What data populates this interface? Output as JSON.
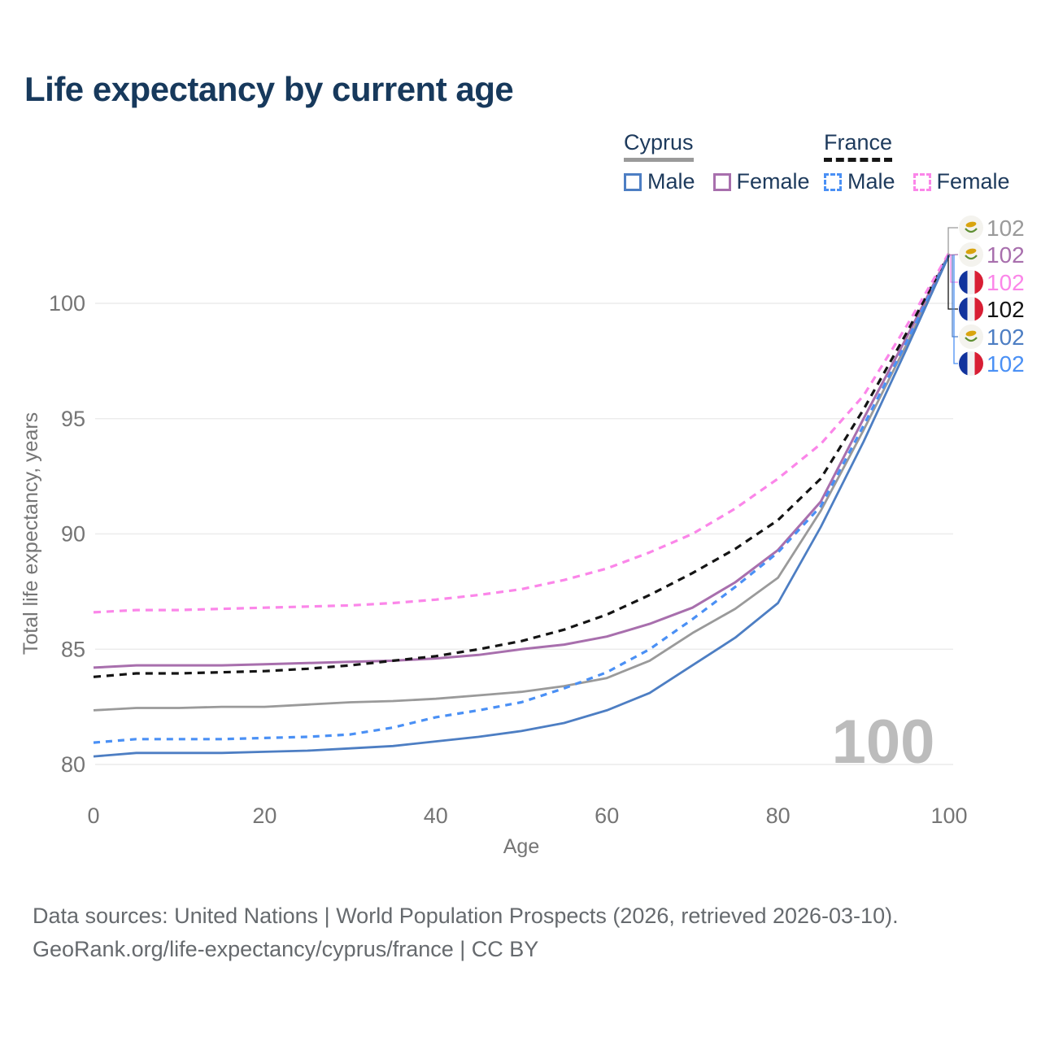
{
  "page": {
    "title": "Life expectancy by current age"
  },
  "legend": {
    "cyprus": {
      "title": "Cyprus",
      "male": "Male",
      "female": "Female"
    },
    "france": {
      "title": "France",
      "male": "Male",
      "female": "Female"
    }
  },
  "footer": {
    "line1": "Data sources: United Nations | World Population Prospects (2026, retrieved 2026-03-10).",
    "line2": "GeoRank.org/life-expectancy/cyprus/france | CC BY"
  },
  "chart_data": {
    "type": "line",
    "title": "Life expectancy by current age",
    "xlabel": "Age",
    "ylabel": "Total life expectancy, years",
    "xlim": [
      0,
      100
    ],
    "ylim_visible": [
      78.6,
      103.2
    ],
    "x_ticks": [
      0,
      20,
      40,
      60,
      80,
      100
    ],
    "y_ticks": [
      80,
      85,
      90,
      95,
      100
    ],
    "grid": "horizontal",
    "watermark": "100",
    "colors": {
      "cyprus_male": "#4d7ec3",
      "cyprus_female": "#a86fad",
      "cyprus_both": "#9a9a9a",
      "france_male": "#4a90f5",
      "france_female": "#fb86e9",
      "france_both": "#141414",
      "title_text": "#17395c",
      "axis_text": "#757575",
      "gridline": "#ececec",
      "watermark_text": "#bcbcbc"
    },
    "ages": [
      0,
      5,
      10,
      15,
      20,
      25,
      30,
      35,
      40,
      45,
      50,
      55,
      60,
      65,
      70,
      75,
      80,
      85,
      90,
      95,
      100
    ],
    "series": [
      {
        "id": "cyprus-both",
        "country": "Cyprus",
        "sex": "Both",
        "style": "solid",
        "color": "#9a9a9a",
        "width": 2.8,
        "dash": null,
        "values": [
          82.35,
          82.45,
          82.45,
          82.5,
          82.5,
          82.6,
          82.7,
          82.75,
          82.85,
          83.0,
          83.15,
          83.4,
          83.75,
          84.5,
          85.7,
          86.75,
          88.1,
          91.0,
          94.5,
          98.2,
          102.1
        ],
        "end_label": "102"
      },
      {
        "id": "cyprus-female",
        "country": "Cyprus",
        "sex": "Female",
        "style": "solid",
        "color": "#a86fad",
        "width": 3,
        "dash": null,
        "values": [
          84.2,
          84.3,
          84.3,
          84.3,
          84.35,
          84.4,
          84.45,
          84.5,
          84.6,
          84.75,
          85.0,
          85.2,
          85.55,
          86.1,
          86.8,
          87.9,
          89.3,
          91.4,
          95.0,
          98.5,
          102.15
        ],
        "end_label": "102"
      },
      {
        "id": "france-both",
        "country": "France",
        "sex": "Both",
        "style": "dashed",
        "color": "#141414",
        "width": 3.2,
        "dash": "9 7",
        "values": [
          83.8,
          83.95,
          83.95,
          84.0,
          84.05,
          84.15,
          84.3,
          84.5,
          84.7,
          85.0,
          85.35,
          85.85,
          86.5,
          87.35,
          88.3,
          89.35,
          90.6,
          92.4,
          95.4,
          98.7,
          102.15
        ],
        "end_label": "102"
      },
      {
        "id": "france-female",
        "country": "France",
        "sex": "Female",
        "style": "dashed",
        "color": "#fb86e9",
        "width": 3.2,
        "dash": "9 7",
        "values": [
          86.6,
          86.7,
          86.7,
          86.75,
          86.8,
          86.85,
          86.9,
          87.0,
          87.15,
          87.35,
          87.6,
          88.0,
          88.5,
          89.2,
          90.0,
          91.1,
          92.4,
          93.9,
          96.0,
          99.0,
          102.2
        ],
        "end_label": "102"
      },
      {
        "id": "france-male",
        "country": "France",
        "sex": "Male",
        "style": "dashed",
        "color": "#4a90f5",
        "width": 3.2,
        "dash": "8 7",
        "values": [
          80.95,
          81.1,
          81.1,
          81.1,
          81.15,
          81.2,
          81.3,
          81.6,
          82.05,
          82.35,
          82.7,
          83.3,
          84.0,
          85.0,
          86.3,
          87.7,
          89.2,
          91.2,
          94.7,
          98.3,
          102.1
        ],
        "end_label": "102"
      },
      {
        "id": "cyprus-male",
        "country": "Cyprus",
        "sex": "Male",
        "style": "solid",
        "color": "#4d7ec3",
        "width": 2.8,
        "dash": null,
        "values": [
          80.35,
          80.5,
          80.5,
          80.5,
          80.55,
          80.6,
          80.7,
          80.8,
          81.0,
          81.2,
          81.45,
          81.8,
          82.35,
          83.1,
          84.3,
          85.5,
          87.0,
          90.3,
          94.0,
          98.0,
          102.1
        ],
        "end_label": "102"
      }
    ],
    "end_labels": [
      {
        "series": "cyprus-both",
        "flag": "cyprus",
        "value": "102",
        "color": "#9a9a9a"
      },
      {
        "series": "cyprus-female",
        "flag": "cyprus",
        "value": "102",
        "color": "#a86fad"
      },
      {
        "series": "france-female",
        "flag": "france",
        "value": "102",
        "color": "#fb86e9"
      },
      {
        "series": "france-both",
        "flag": "france",
        "value": "102",
        "color": "#141414"
      },
      {
        "series": "cyprus-male",
        "flag": "cyprus",
        "value": "102",
        "color": "#4d7ec3"
      },
      {
        "series": "france-male",
        "flag": "france",
        "value": "102",
        "color": "#4a90f5"
      }
    ]
  }
}
